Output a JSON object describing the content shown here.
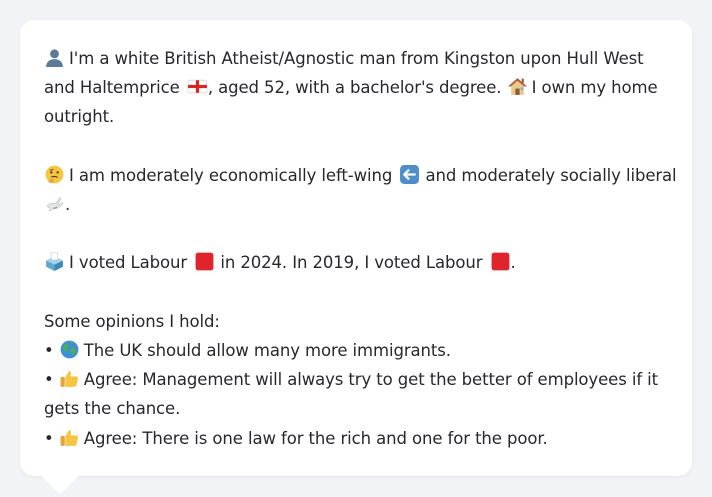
{
  "profile": {
    "line1": "I'm a white British Atheist/Agnostic man from Kingston upon Hull West",
    "line2a": "and Haltemprice",
    "line2b": ", aged 52, with a bachelor's degree.",
    "line2c": "I own my home",
    "line3": "outright.",
    "icons": [
      "person-icon",
      "england-flag-icon",
      "house-icon"
    ]
  },
  "politics": {
    "line1a": "I am moderately economically left-wing",
    "line1b": "and moderately socially liberal",
    "line2": ".",
    "icons": [
      "thinking-face-icon",
      "left-arrow-icon",
      "dove-icon"
    ]
  },
  "votes": {
    "text1": "I voted Labour",
    "text2": "in 2024. In 2019, I voted Labour",
    "text3": ".",
    "labour_color": "#e0242b",
    "icons": [
      "ballot-box-icon",
      "red-square-icon"
    ]
  },
  "opinions": {
    "heading": "Some opinions I hold:",
    "bullet": "•",
    "items": [
      {
        "icon": "globe-icon",
        "text": "The UK should allow many more immigrants."
      },
      {
        "icon": "thumbs-up-icon",
        "text": "Agree: Management will always try to get the better of employees if it",
        "text_cont": "gets the chance."
      },
      {
        "icon": "thumbs-up-icon",
        "text": "Agree: There is one law for the rich and one for the poor."
      }
    ]
  }
}
